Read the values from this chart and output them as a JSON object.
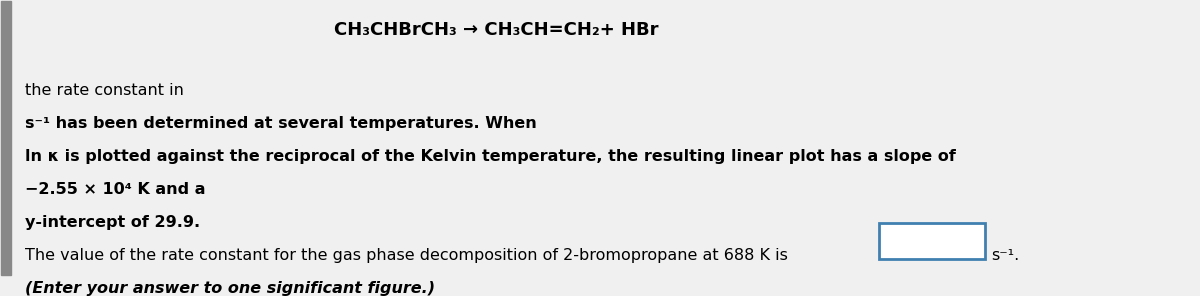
{
  "bg_color": "#f0f0f0",
  "left_bar_color": "#888888",
  "answer_box_color": "#a0c0e0",
  "answer_box_border": "#4080b0",
  "equation_line": "CH₃CHBrCH₃ → CH₃CH=CH₂+ HBr",
  "line1": "the rate constant in",
  "line2": "s⁻¹ has been determined at several temperatures. When",
  "line3": "ln κ is plotted against the reciprocal of the Kelvin temperature, the resulting linear plot has a slope of",
  "line4": "−2.55 × 10⁴ K and a",
  "line5": "y-intercept of 29.9.",
  "line6": "The value of the rate constant for the gas phase decomposition of 2-bromopropane at 688 K is",
  "line6_suffix": "s⁻¹.",
  "line7": "(Enter your answer to one significant figure.)",
  "font_size_equation": 13,
  "font_size_main": 11.5,
  "font_size_italic": 11.5
}
